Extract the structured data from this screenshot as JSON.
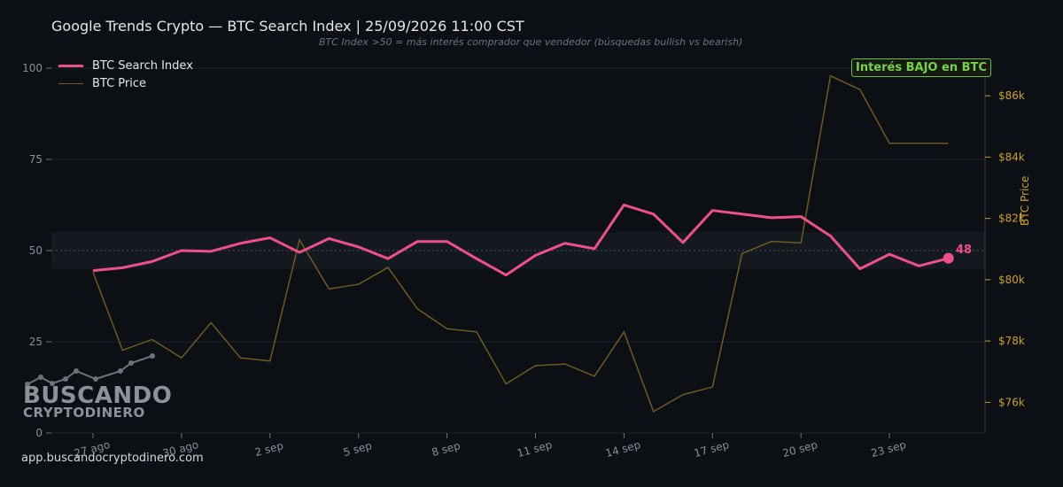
{
  "header": {
    "title": "Google Trends Crypto — BTC Search Index  |  25/09/2026 11:00 CST",
    "subtitle": "BTC Index >50 = más interés comprador que vendedor (búsquedas bullish vs bearish)"
  },
  "badge": {
    "text": "Interés BAJO en BTC"
  },
  "footer": {
    "url": "app.buscandocryptodinero.com"
  },
  "logo": {
    "line1": "BUSCANDO",
    "line2": "CRYPTODINERO"
  },
  "colors": {
    "background": "#0c0f14",
    "index_line": "#f0508a",
    "price_line": "#6e5a22",
    "right_axis": "#c9a227",
    "badge": "#7ad046"
  },
  "chart_data": {
    "type": "line",
    "x_ticks": [
      "27 ago",
      "30 ago",
      "2 sep",
      "5 sep",
      "8 sep",
      "11 sep",
      "14 sep",
      "17 sep",
      "20 sep",
      "23 sep"
    ],
    "x_tick_days": [
      0,
      3,
      6,
      9,
      12,
      15,
      18,
      21,
      24,
      27
    ],
    "y_left": {
      "ticks": [
        0,
        25,
        50,
        75,
        100
      ],
      "ylim": [
        0,
        100
      ]
    },
    "y_right": {
      "label": "BTC Price",
      "ticks": [
        "$76k",
        "$78k",
        "$80k",
        "$82k",
        "$84k",
        "$86k"
      ],
      "tick_values": [
        76000,
        78000,
        80000,
        82000,
        84000,
        86000
      ],
      "ylim": [
        75000,
        86900
      ]
    },
    "reference_line": 50,
    "neutral_band": [
      45,
      55
    ],
    "last_value_label": "48",
    "series": [
      {
        "name": "BTC Search Index",
        "axis": "left",
        "x": [
          0,
          1,
          2,
          3,
          4,
          5,
          6,
          7,
          8,
          9,
          10,
          11,
          12,
          13,
          14,
          15,
          16,
          17,
          18,
          19,
          20,
          21,
          22,
          23,
          24,
          25,
          26,
          27,
          28,
          29
        ],
        "values": [
          44.5,
          45.3,
          47,
          50,
          49.8,
          52,
          53.5,
          49.5,
          53.3,
          51,
          47.8,
          52.5,
          52.5,
          47.8,
          43.3,
          48.7,
          52,
          50.5,
          62.5,
          60,
          52.2,
          61,
          60,
          59,
          59.3,
          54,
          45,
          49,
          45.8,
          47.9
        ]
      },
      {
        "name": "BTC Price",
        "axis": "right",
        "x": [
          0,
          1,
          2,
          3,
          4,
          5,
          6,
          7,
          8,
          9,
          10,
          11,
          12,
          13,
          14,
          15,
          16,
          17,
          18,
          19,
          20,
          21,
          22,
          23,
          24,
          25,
          26,
          27,
          28,
          29
        ],
        "values": [
          80250,
          77700,
          78050,
          77450,
          78600,
          77450,
          77350,
          81300,
          79700,
          79850,
          80400,
          79050,
          78400,
          78300,
          76600,
          77200,
          77250,
          76850,
          78300,
          75700,
          76250,
          76500,
          80850,
          81250,
          81200,
          86650,
          86200,
          84450,
          84450,
          84450
        ]
      }
    ]
  }
}
